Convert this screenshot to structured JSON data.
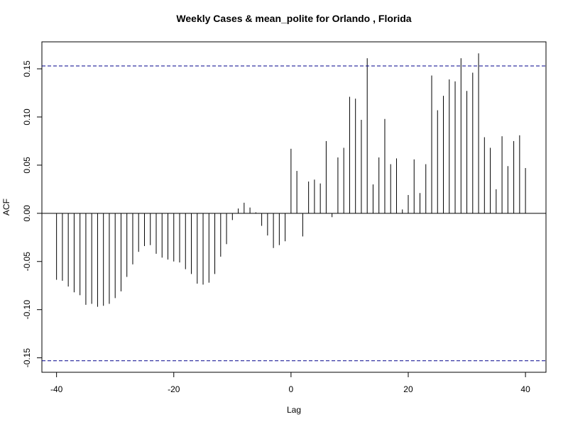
{
  "chart_data": {
    "type": "bar",
    "title": "Weekly Cases & mean_polite for Orlando , Florida",
    "xlabel": "Lag",
    "ylabel": "ACF",
    "xlim": [
      -42.5,
      43.5
    ],
    "ylim": [
      -0.165,
      0.178
    ],
    "x_ticks": [
      -40,
      -20,
      0,
      20,
      40
    ],
    "x_tick_labels": [
      "-40",
      "-20",
      "0",
      "20",
      "40"
    ],
    "y_ticks": [
      -0.15,
      -0.1,
      -0.05,
      0.0,
      0.05,
      0.1,
      0.15
    ],
    "y_tick_labels": [
      "-0.15",
      "-0.10",
      "-0.05",
      "0.00",
      "0.05",
      "0.10",
      "0.15"
    ],
    "confidence_bound": 0.153,
    "confidence_color": "#00008b",
    "bar_color": "#000000",
    "grid": false,
    "lags": [
      -40,
      -39,
      -38,
      -37,
      -36,
      -35,
      -34,
      -33,
      -32,
      -31,
      -30,
      -29,
      -28,
      -27,
      -26,
      -25,
      -24,
      -23,
      -22,
      -21,
      -20,
      -19,
      -18,
      -17,
      -16,
      -15,
      -14,
      -13,
      -12,
      -11,
      -10,
      -9,
      -8,
      -7,
      -6,
      -5,
      -4,
      -3,
      -2,
      -1,
      0,
      1,
      2,
      3,
      4,
      5,
      6,
      7,
      8,
      9,
      10,
      11,
      12,
      13,
      14,
      15,
      16,
      17,
      18,
      19,
      20,
      21,
      22,
      23,
      24,
      25,
      26,
      27,
      28,
      29,
      30,
      31,
      32,
      33,
      34,
      35,
      36,
      37,
      38,
      39,
      40
    ],
    "values": [
      -0.069,
      -0.07,
      -0.076,
      -0.082,
      -0.085,
      -0.095,
      -0.094,
      -0.097,
      -0.096,
      -0.094,
      -0.088,
      -0.081,
      -0.066,
      -0.053,
      -0.04,
      -0.034,
      -0.033,
      -0.042,
      -0.046,
      -0.048,
      -0.05,
      -0.051,
      -0.058,
      -0.063,
      -0.073,
      -0.074,
      -0.072,
      -0.063,
      -0.045,
      -0.032,
      -0.007,
      0.005,
      0.011,
      0.006,
      0.001,
      -0.013,
      -0.023,
      -0.036,
      -0.033,
      -0.029,
      0.067,
      0.044,
      -0.024,
      0.033,
      0.035,
      0.031,
      0.075,
      -0.004,
      0.058,
      0.068,
      0.121,
      0.119,
      0.097,
      0.161,
      0.03,
      0.058,
      0.098,
      0.051,
      0.057,
      0.004,
      0.019,
      0.056,
      0.021,
      0.051,
      0.143,
      0.107,
      0.122,
      0.139,
      0.137,
      0.161,
      0.127,
      0.146,
      0.166,
      0.079,
      0.068,
      0.025,
      0.08,
      0.049,
      0.075,
      0.081,
      0.047
    ]
  }
}
